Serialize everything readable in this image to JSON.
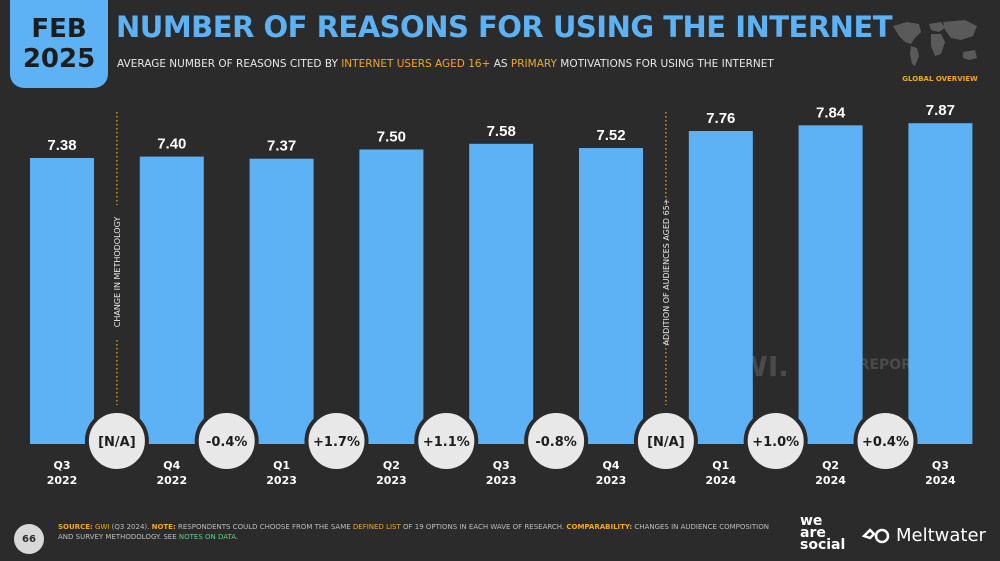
{
  "badge": {
    "month": "FEB",
    "year": "2025"
  },
  "header": {
    "title": "NUMBER OF REASONS FOR USING THE INTERNET",
    "subtitle_part1": "AVERAGE NUMBER OF REASONS CITED BY ",
    "subtitle_highlight1": "INTERNET USERS AGED 16+",
    "subtitle_part2": " AS ",
    "subtitle_highlight2": "PRIMARY",
    "subtitle_part3": " MOTIVATIONS FOR USING THE INTERNET",
    "global_label": "GLOBAL OVERVIEW"
  },
  "watermarks": {
    "gwi": "GWI.",
    "datareportal": "DATAREPORTAL"
  },
  "chart_data": {
    "type": "bar",
    "categories": [
      "Q3 2022",
      "Q4 2022",
      "Q1 2023",
      "Q2 2023",
      "Q3 2023",
      "Q4 2023",
      "Q1 2024",
      "Q2 2024",
      "Q3 2024"
    ],
    "values": [
      7.38,
      7.4,
      7.37,
      7.5,
      7.58,
      7.52,
      7.76,
      7.84,
      7.87
    ],
    "changes": [
      "[N/A]",
      "-0.4%",
      "+1.7%",
      "+1.1%",
      "-0.8%",
      "[N/A]",
      "+1.0%",
      "+0.4%"
    ],
    "annotations": [
      {
        "after_index": 0,
        "text": "CHANGE IN METHODOLOGY"
      },
      {
        "after_index": 5,
        "text": "ADDITION OF AUDIENCES AGED 65+"
      }
    ],
    "bar_color": "#5db2f5"
  },
  "footer": {
    "source_label": "SOURCE:",
    "source_link": "GWI",
    "source_text": " (Q3 2024). ",
    "note_label": "NOTE:",
    "note_text": " RESPONDENTS COULD CHOOSE FROM THE SAME ",
    "defined_list": "DEFINED LIST",
    "note_text2": " OF 19 OPTIONS IN EACH WAVE OF RESEARCH. ",
    "comparability_label": "COMPARABILITY:",
    "comparability_text": " CHANGES IN AUDIENCE COMPOSITION AND SURVEY METHODOLOGY. SEE ",
    "notes_link": "NOTES ON DATA",
    "end": ".",
    "page_number": "66"
  },
  "brands": {
    "we": "we",
    "are": "are",
    "social": "social",
    "meltwater": "Meltwater"
  }
}
